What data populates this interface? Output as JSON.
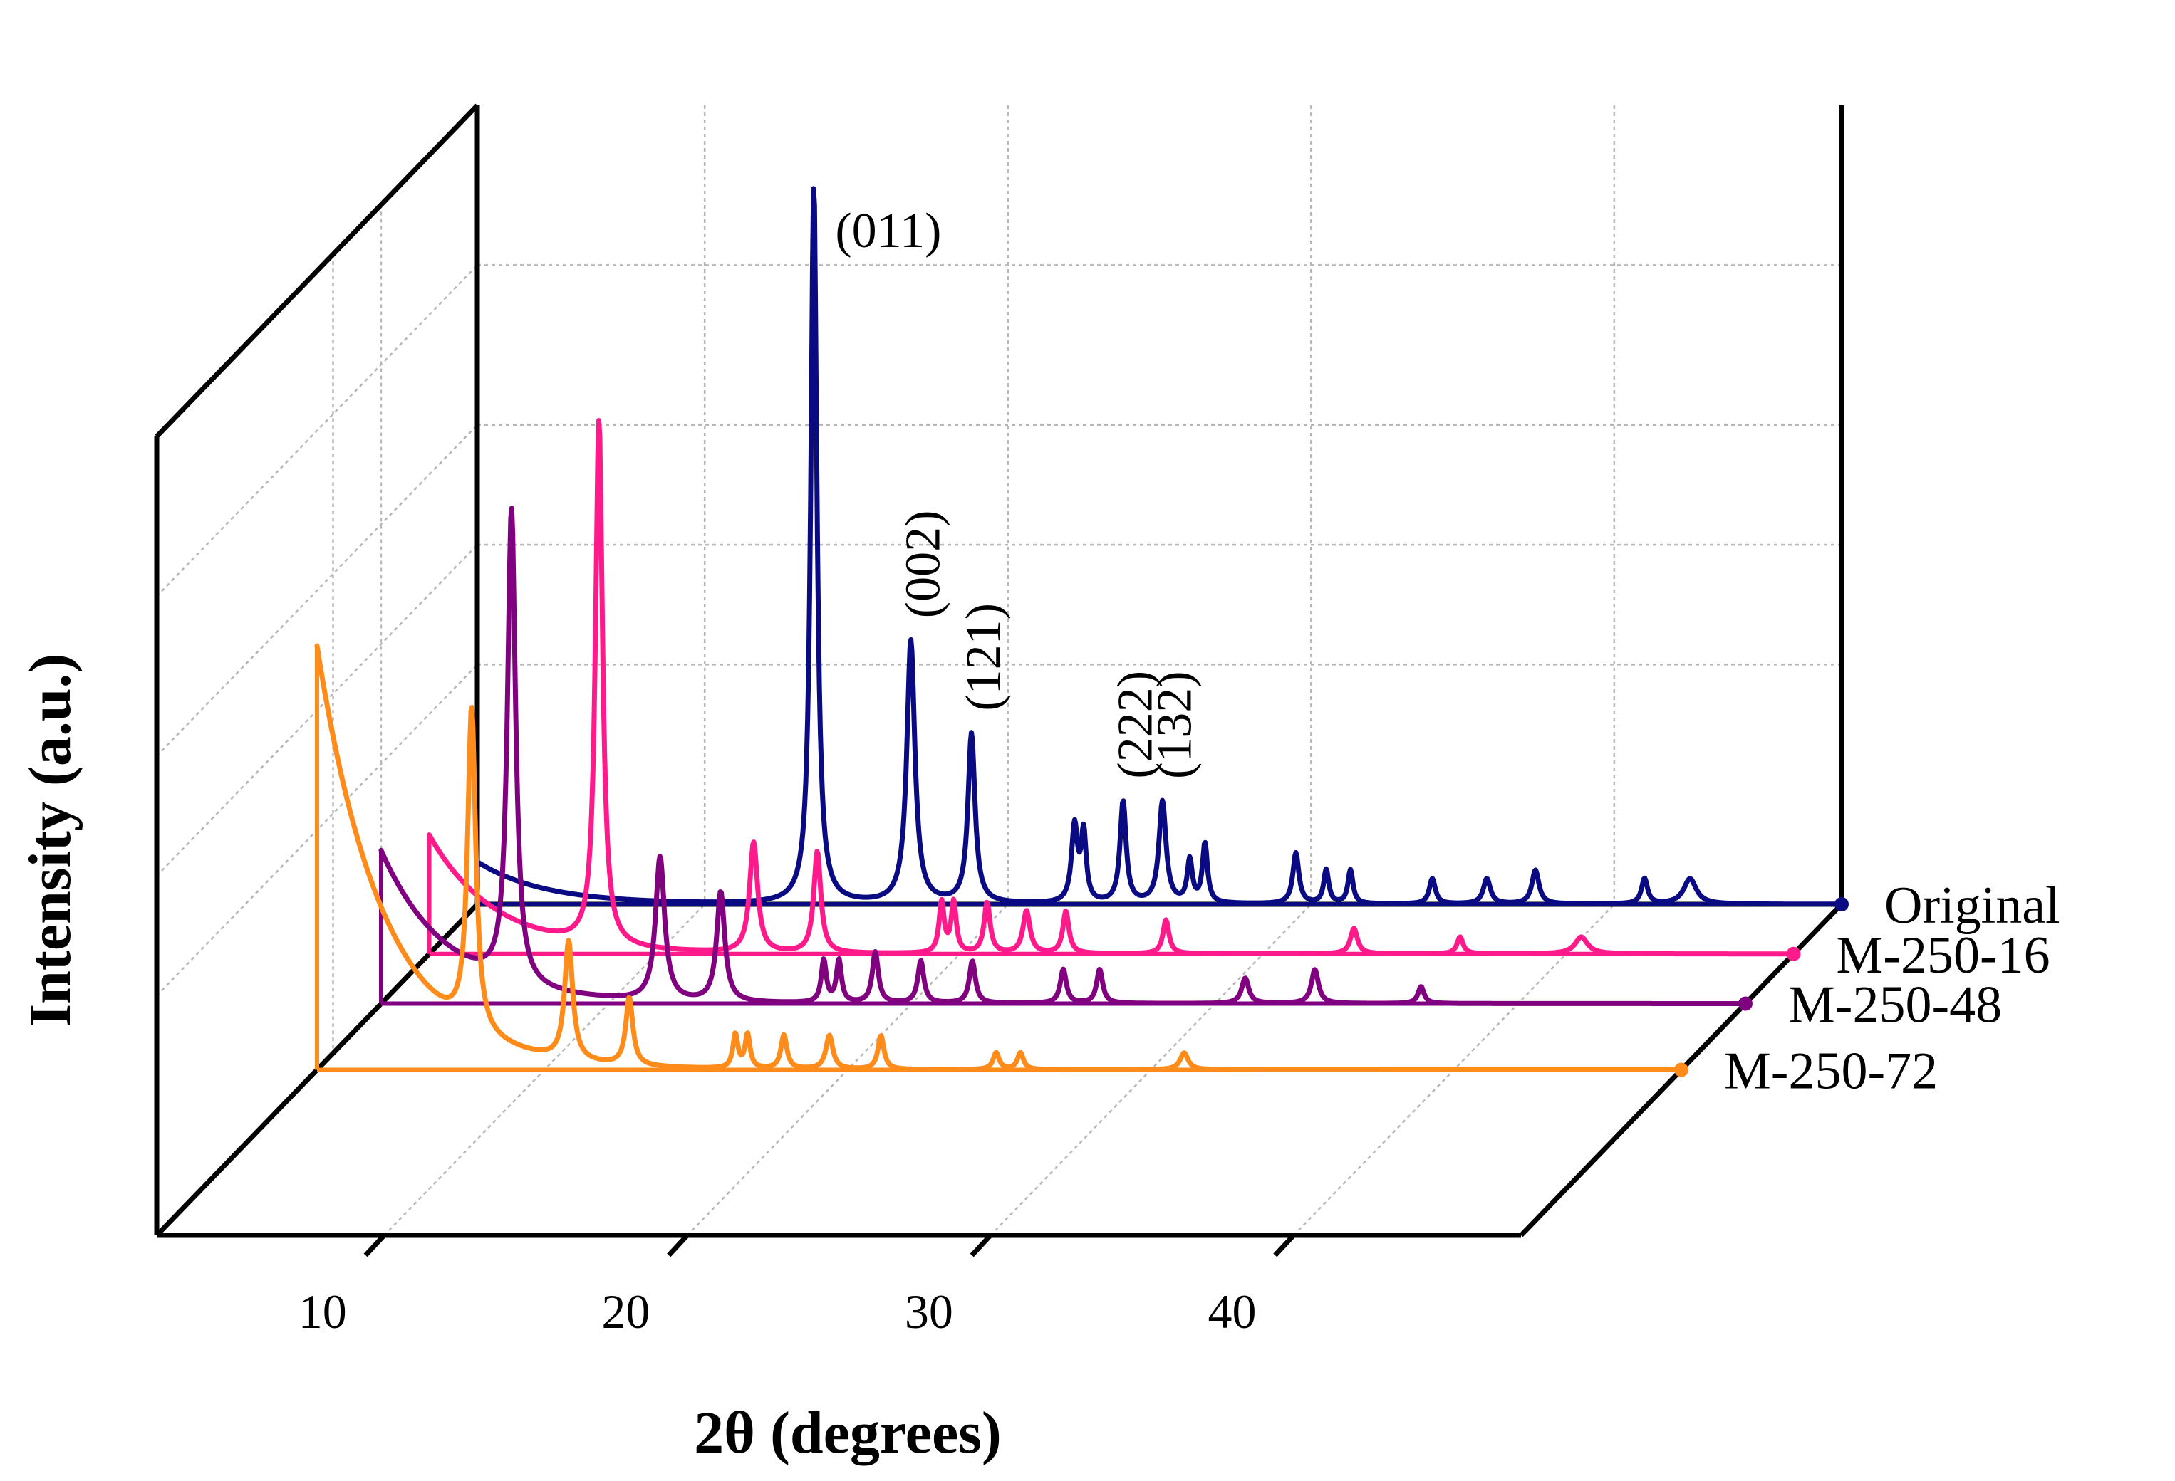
{
  "chart_data": {
    "type": "line",
    "title": "",
    "xlabel": "2θ (degrees)",
    "ylabel": "Intensity (a.u.)",
    "xlim": [
      5,
      50
    ],
    "x_ticks": [
      10,
      20,
      30,
      40
    ],
    "x_tick_labels": [
      "10",
      "20",
      "30",
      "40"
    ],
    "ylim": [
      0,
      100
    ],
    "grid": true,
    "style": "3D waterfall",
    "series_labels_position": "right",
    "series": [
      {
        "name": "Original",
        "color": "#0a0a82",
        "baseline": 5,
        "peaks": [
          {
            "x": 16.1,
            "y": 85,
            "w": 0.12
          },
          {
            "x": 19.3,
            "y": 31,
            "w": 0.16
          },
          {
            "x": 21.3,
            "y": 20,
            "w": 0.14
          },
          {
            "x": 24.7,
            "y": 9,
            "w": 0.12
          },
          {
            "x": 25.0,
            "y": 8,
            "w": 0.1
          },
          {
            "x": 26.3,
            "y": 12,
            "w": 0.12
          },
          {
            "x": 27.6,
            "y": 12,
            "w": 0.14
          },
          {
            "x": 28.5,
            "y": 5,
            "w": 0.1
          },
          {
            "x": 29.0,
            "y": 7,
            "w": 0.1
          },
          {
            "x": 32.0,
            "y": 6,
            "w": 0.12
          },
          {
            "x": 33.0,
            "y": 4,
            "w": 0.1
          },
          {
            "x": 33.8,
            "y": 4,
            "w": 0.1
          },
          {
            "x": 36.5,
            "y": 3,
            "w": 0.12
          },
          {
            "x": 38.3,
            "y": 3,
            "w": 0.14
          },
          {
            "x": 39.9,
            "y": 4,
            "w": 0.14
          },
          {
            "x": 43.5,
            "y": 3,
            "w": 0.12
          },
          {
            "x": 45.0,
            "y": 3,
            "w": 0.25
          }
        ]
      },
      {
        "name": "M-250-16",
        "color": "#ff1a8c",
        "baseline": 14,
        "peaks": [
          {
            "x": 10.6,
            "y": 62,
            "w": 0.14
          },
          {
            "x": 15.7,
            "y": 13,
            "w": 0.16
          },
          {
            "x": 17.8,
            "y": 12,
            "w": 0.14
          },
          {
            "x": 21.9,
            "y": 6,
            "w": 0.1
          },
          {
            "x": 22.3,
            "y": 6,
            "w": 0.1
          },
          {
            "x": 23.4,
            "y": 6,
            "w": 0.12
          },
          {
            "x": 24.7,
            "y": 5,
            "w": 0.14
          },
          {
            "x": 26.0,
            "y": 5,
            "w": 0.12
          },
          {
            "x": 29.3,
            "y": 4,
            "w": 0.12
          },
          {
            "x": 35.5,
            "y": 3,
            "w": 0.14
          },
          {
            "x": 39.0,
            "y": 2,
            "w": 0.12
          },
          {
            "x": 43.0,
            "y": 2,
            "w": 0.25
          }
        ]
      },
      {
        "name": "M-250-48",
        "color": "#800080",
        "baseline": 18,
        "peaks": [
          {
            "x": 9.3,
            "y": 56,
            "w": 0.16
          },
          {
            "x": 14.2,
            "y": 17,
            "w": 0.18
          },
          {
            "x": 16.2,
            "y": 13,
            "w": 0.16
          },
          {
            "x": 19.6,
            "y": 5,
            "w": 0.1
          },
          {
            "x": 20.1,
            "y": 5,
            "w": 0.1
          },
          {
            "x": 21.3,
            "y": 6,
            "w": 0.12
          },
          {
            "x": 22.8,
            "y": 5,
            "w": 0.12
          },
          {
            "x": 24.5,
            "y": 5,
            "w": 0.12
          },
          {
            "x": 27.5,
            "y": 4,
            "w": 0.12
          },
          {
            "x": 28.7,
            "y": 4,
            "w": 0.12
          },
          {
            "x": 33.5,
            "y": 3,
            "w": 0.14
          },
          {
            "x": 35.8,
            "y": 4,
            "w": 0.14
          },
          {
            "x": 39.3,
            "y": 2,
            "w": 0.12
          }
        ]
      },
      {
        "name": "M-250-72",
        "color": "#ff8c1a",
        "baseline": 50,
        "peaks": [
          {
            "x": 10.1,
            "y": 38,
            "w": 0.16
          },
          {
            "x": 13.3,
            "y": 14,
            "w": 0.16
          },
          {
            "x": 15.3,
            "y": 8,
            "w": 0.14
          },
          {
            "x": 18.8,
            "y": 4,
            "w": 0.1
          },
          {
            "x": 19.2,
            "y": 4,
            "w": 0.1
          },
          {
            "x": 20.4,
            "y": 4,
            "w": 0.12
          },
          {
            "x": 21.9,
            "y": 4,
            "w": 0.14
          },
          {
            "x": 23.6,
            "y": 4,
            "w": 0.12
          },
          {
            "x": 27.4,
            "y": 2,
            "w": 0.12
          },
          {
            "x": 28.2,
            "y": 2,
            "w": 0.12
          },
          {
            "x": 33.6,
            "y": 2,
            "w": 0.16
          }
        ]
      }
    ],
    "annotations": [
      {
        "text": "(011)",
        "series": "Original",
        "x": 16.1,
        "rotated": false
      },
      {
        "text": "(002)",
        "series": "Original",
        "x": 19.3,
        "rotated": true
      },
      {
        "text": "(121)",
        "series": "Original",
        "x": 21.3,
        "rotated": true
      },
      {
        "text": "(222)",
        "series": "Original",
        "x": 26.3,
        "rotated": true
      },
      {
        "text": "(132)",
        "series": "Original",
        "x": 27.6,
        "rotated": true
      }
    ]
  }
}
